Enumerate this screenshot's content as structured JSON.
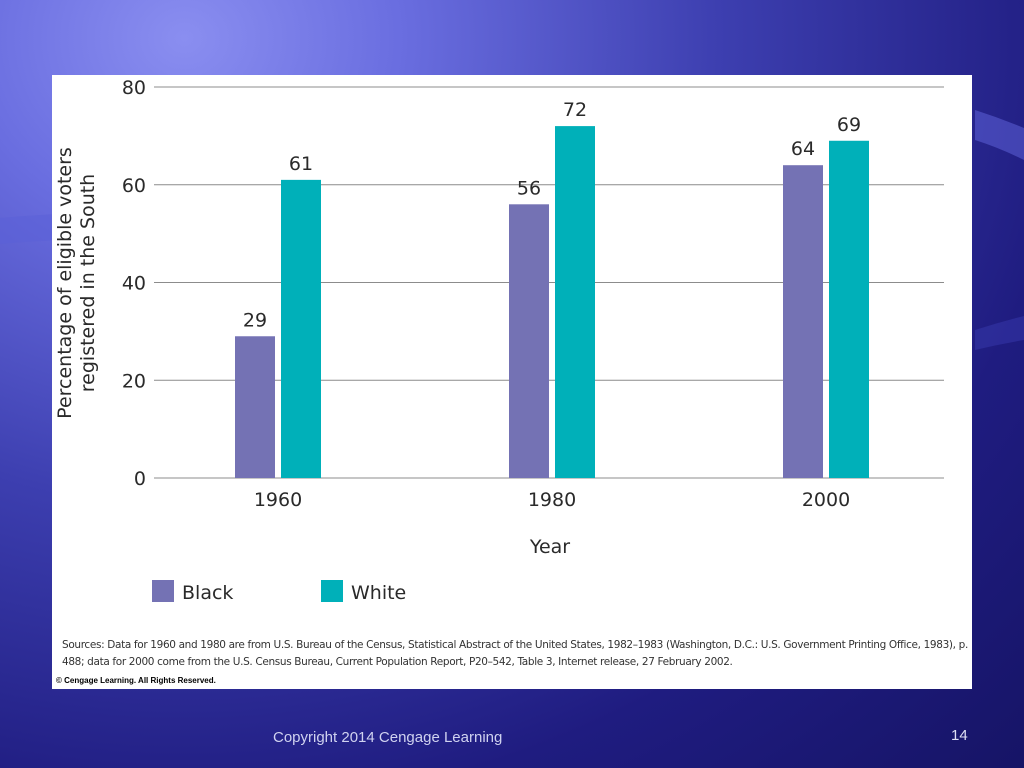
{
  "chart_data": {
    "type": "bar",
    "categories": [
      "1960",
      "1980",
      "2000"
    ],
    "series": [
      {
        "name": "Black",
        "values": [
          29,
          56,
          64
        ],
        "color": "#7472b4"
      },
      {
        "name": "White",
        "values": [
          61,
          72,
          69
        ],
        "color": "#00b0b9"
      }
    ],
    "ylabel": "Percentage of eligible voters registered in the South",
    "xlabel": "Year",
    "ylim": [
      0,
      80
    ],
    "yticks": [
      0,
      20,
      40,
      60,
      80
    ],
    "grid": true,
    "legend_position": "bottom-left"
  },
  "notes": {
    "sources": "Sources: Data for 1960 and 1980 are from U.S. Bureau of the Census, Statistical Abstract of the United States, 1982–1983 (Washington, D.C.: U.S. Government Printing Office, 1983), p. 488; data for 2000 come from the U.S. Census Bureau, Current Population Report, P20–542, Table 3, Internet release, 27 February 2002.",
    "image_copyright": "© Cengage Learning. All Rights Reserved."
  },
  "slide": {
    "footer": "Copyright 2014 Cengage Learning",
    "page_number": "14"
  }
}
